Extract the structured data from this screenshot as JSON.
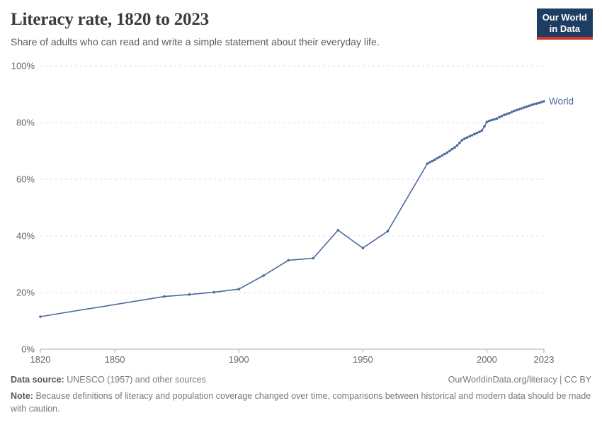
{
  "header": {
    "title": "Literacy rate, 1820 to 2023",
    "subtitle": "Share of adults who can read and write a simple statement about their everyday life.",
    "logo": {
      "line1": "Our World",
      "line2": "in Data"
    }
  },
  "colors": {
    "line": "#4c6a9c",
    "grid": "#dcdcdc",
    "axis": "#a8a8a8",
    "tick_label": "#666666",
    "brand_navy": "#1d3d63",
    "brand_red": "#d8352e"
  },
  "chart_data": {
    "type": "line",
    "title": "Literacy rate, 1820 to 2023",
    "xlabel": "",
    "ylabel": "",
    "xlim": [
      1820,
      2023
    ],
    "ylim": [
      0,
      100
    ],
    "x_ticks": [
      1820,
      1850,
      1900,
      1950,
      2000,
      2023
    ],
    "y_ticks": [
      0,
      20,
      40,
      60,
      80,
      100
    ],
    "y_tick_format": "{}%",
    "grid": "dashed-horizontal",
    "legend_position": "end-of-line-label",
    "series": [
      {
        "name": "World",
        "color": "#4c6a9c",
        "points": [
          [
            1820,
            11.5
          ],
          [
            1870,
            18.6
          ],
          [
            1880,
            19.3
          ],
          [
            1890,
            20.1
          ],
          [
            1900,
            21.2
          ],
          [
            1910,
            26.0
          ],
          [
            1920,
            31.4
          ],
          [
            1930,
            32.1
          ],
          [
            1940,
            42.0
          ],
          [
            1950,
            35.7
          ],
          [
            1960,
            41.6
          ],
          [
            1976,
            65.5
          ],
          [
            1977,
            66.0
          ],
          [
            1978,
            66.4
          ],
          [
            1979,
            66.9
          ],
          [
            1980,
            67.4
          ],
          [
            1981,
            67.9
          ],
          [
            1982,
            68.4
          ],
          [
            1983,
            68.9
          ],
          [
            1984,
            69.4
          ],
          [
            1985,
            70.0
          ],
          [
            1986,
            70.6
          ],
          [
            1987,
            71.2
          ],
          [
            1988,
            71.9
          ],
          [
            1989,
            72.8
          ],
          [
            1990,
            73.8
          ],
          [
            1991,
            74.3
          ],
          [
            1992,
            74.7
          ],
          [
            1993,
            75.1
          ],
          [
            1994,
            75.5
          ],
          [
            1995,
            75.9
          ],
          [
            1996,
            76.3
          ],
          [
            1997,
            76.7
          ],
          [
            1998,
            77.2
          ],
          [
            1999,
            78.6
          ],
          [
            2000,
            80.2
          ],
          [
            2001,
            80.6
          ],
          [
            2002,
            80.9
          ],
          [
            2003,
            81.1
          ],
          [
            2004,
            81.4
          ],
          [
            2005,
            81.9
          ],
          [
            2006,
            82.3
          ],
          [
            2007,
            82.7
          ],
          [
            2008,
            83.0
          ],
          [
            2009,
            83.3
          ],
          [
            2010,
            83.7
          ],
          [
            2011,
            84.1
          ],
          [
            2012,
            84.4
          ],
          [
            2013,
            84.7
          ],
          [
            2014,
            85.0
          ],
          [
            2015,
            85.3
          ],
          [
            2016,
            85.6
          ],
          [
            2017,
            85.9
          ],
          [
            2018,
            86.2
          ],
          [
            2019,
            86.5
          ],
          [
            2020,
            86.7
          ],
          [
            2021,
            86.9
          ],
          [
            2022,
            87.2
          ],
          [
            2023,
            87.5
          ]
        ]
      }
    ]
  },
  "footer": {
    "datasource_label": "Data source:",
    "datasource_text": "UNESCO (1957) and other sources",
    "attribution": "OurWorldinData.org/literacy | CC BY",
    "note_label": "Note:",
    "note_text": "Because definitions of literacy and population coverage changed over time, comparisons between historical and modern data should be made with caution."
  }
}
